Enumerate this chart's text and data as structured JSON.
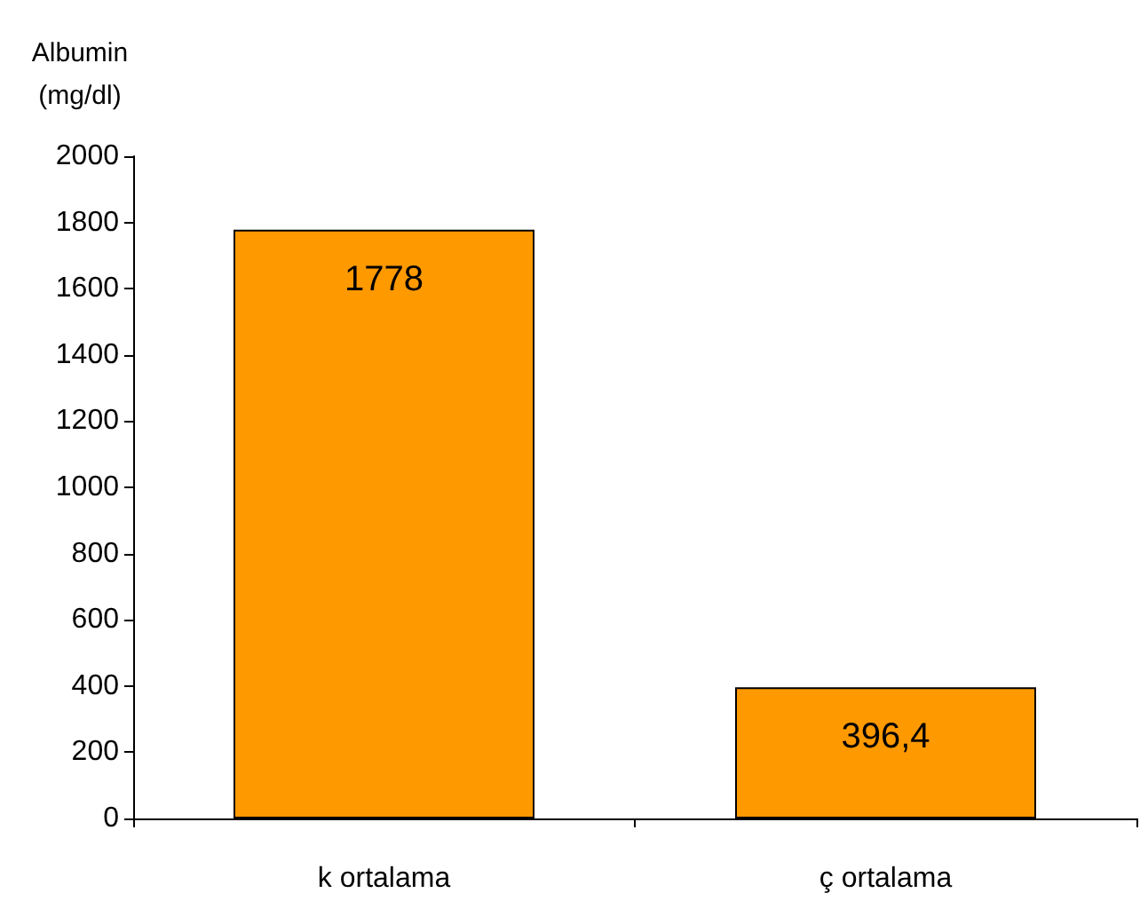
{
  "chart_data": {
    "type": "bar",
    "ylabel": "Albumin\n(mg/dl)",
    "categories": [
      "k ortalama",
      "ç ortalama"
    ],
    "values": [
      1778,
      396.4
    ],
    "value_labels": [
      "1778",
      "396,4"
    ],
    "color": "#ff9900",
    "ylim": [
      0,
      2000
    ],
    "yticks": [
      0,
      200,
      400,
      600,
      800,
      1000,
      1200,
      1400,
      1600,
      1800,
      2000
    ],
    "grid": false
  }
}
